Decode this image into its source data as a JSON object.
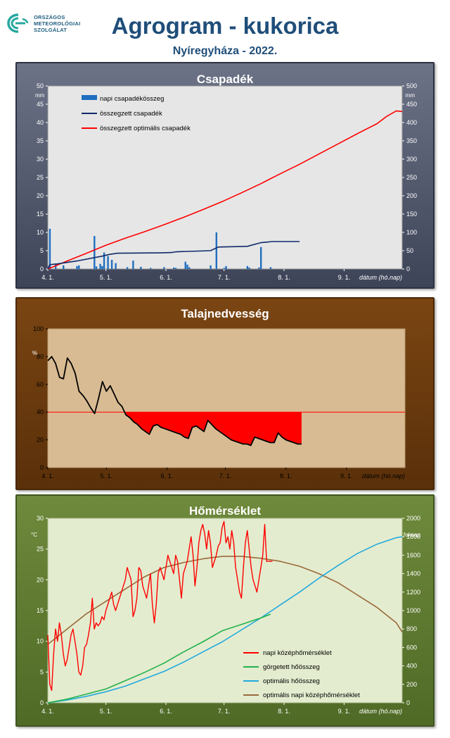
{
  "header": {
    "logo_lines": [
      "ORSZÁGOS",
      "METEOROLÓGIAI",
      "SZOLGÁLAT"
    ],
    "title": "Agrogram - kukorica",
    "subtitle": "Nyíregyháza - 2022."
  },
  "colors": {
    "title": "#1f4e79",
    "precip_bar": "#1f6fbf",
    "cum_precip": "#0f2a6a",
    "opt_precip": "#ff0000",
    "soil_line": "#000000",
    "soil_deficit": "#ff0000",
    "temp_daily": "#ff0000",
    "rolling_heat": "#22b24c",
    "opt_heat": "#22aadd",
    "opt_temp": "#9a6a3a"
  },
  "x_axis": {
    "ticks": [
      "4. 1.",
      "5. 1.",
      "6. 1.",
      "7. 1.",
      "8. 1.",
      "9. 1."
    ],
    "label": "dátum (hó.nap)"
  },
  "charts": {
    "precip": {
      "title": "Csapadék",
      "y_unit": "mm",
      "y2_unit": "mm",
      "legend": [
        "napi csapadékösszeg",
        "összegzett csapadék",
        "összegzett optimális csapadék"
      ]
    },
    "soil": {
      "title": "Talajnedvesség",
      "y_unit": "%"
    },
    "temp": {
      "title": "Hőmérséklet",
      "y_unit": "°C",
      "y2_unit": "foknap",
      "legend": [
        "napi középhőmérséklet",
        "görgetett hőösszeg",
        "optimális hőösszeg",
        "optimális napi középhőmérséklet"
      ]
    }
  },
  "chart_data": [
    {
      "type": "bar",
      "title": "Csapadék",
      "xlabel": "dátum (hó.nap)",
      "ylabel": "mm",
      "x_domain_days": [
        0,
        183
      ],
      "ylim": [
        0,
        50
      ],
      "y2lim": [
        0,
        500
      ],
      "y_ticks": [
        0,
        5,
        10,
        15,
        20,
        25,
        30,
        35,
        40,
        45,
        50
      ],
      "y2_ticks": [
        0,
        50,
        100,
        150,
        200,
        250,
        300,
        350,
        400,
        450,
        500
      ],
      "series": [
        {
          "name": "napi csapadékösszeg",
          "axis": "left",
          "kind": "bar",
          "x": [
            1,
            4,
            8,
            15,
            16,
            24,
            25,
            27,
            28,
            29,
            31,
            33,
            35,
            41,
            44,
            48,
            53,
            60,
            65,
            66,
            71,
            72,
            73,
            84,
            87,
            91,
            92,
            103,
            104,
            109,
            110,
            115
          ],
          "values": [
            11,
            1.5,
            1,
            0.8,
            1,
            9,
            0.7,
            1.4,
            0.8,
            4.5,
            3.5,
            2.5,
            1.6,
            0.5,
            2.3,
            0.6,
            0.3,
            0.5,
            0.4,
            0.3,
            2,
            1.2,
            0.5,
            1,
            10,
            0.3,
            0.8,
            0.8,
            0.4,
            0.4,
            6,
            0.5
          ]
        },
        {
          "name": "összegzett csapadék",
          "axis": "right",
          "kind": "line",
          "x": [
            0,
            1,
            5,
            15,
            28,
            32,
            36,
            58,
            64,
            66,
            72,
            84,
            88,
            103,
            110,
            116,
            130
          ],
          "y": [
            0,
            12,
            14,
            22,
            35,
            40,
            43,
            44,
            45,
            47,
            48,
            50,
            60,
            62,
            72,
            75,
            75
          ]
        },
        {
          "name": "összegzett optimális csapadék",
          "axis": "right",
          "kind": "line",
          "x": [
            0,
            10,
            20,
            30,
            40,
            50,
            60,
            70,
            80,
            90,
            100,
            110,
            120,
            130,
            140,
            150,
            160,
            170,
            175,
            180,
            183
          ],
          "y": [
            0,
            22,
            43,
            65,
            84,
            102,
            121,
            141,
            162,
            184,
            208,
            233,
            260,
            286,
            314,
            342,
            370,
            397,
            417,
            432,
            430
          ]
        }
      ]
    },
    {
      "type": "area",
      "title": "Talajnedvesség",
      "xlabel": "dátum (hó.nap)",
      "ylabel": "%",
      "x_domain_days": [
        0,
        183
      ],
      "ylim": [
        0,
        100
      ],
      "y_ticks": [
        0,
        20,
        40,
        60,
        80,
        100
      ],
      "threshold": 40,
      "series": [
        {
          "name": "talajnedvesség",
          "x": [
            0,
            2,
            4,
            6,
            8,
            10,
            12,
            14,
            16,
            18,
            20,
            22,
            24,
            26,
            28,
            30,
            32,
            34,
            36,
            38,
            40,
            42,
            44,
            46,
            48,
            50,
            52,
            54,
            56,
            58,
            60,
            62,
            64,
            66,
            68,
            70,
            72,
            74,
            76,
            78,
            80,
            82,
            84,
            86,
            88,
            90,
            92,
            94,
            96,
            98,
            100,
            102,
            104,
            106,
            108,
            110,
            112,
            114,
            116,
            118,
            120,
            122,
            124,
            126,
            128,
            130
          ],
          "y": [
            77,
            80,
            75,
            65,
            64,
            79,
            75,
            68,
            55,
            52,
            48,
            43,
            39,
            50,
            62,
            55,
            59,
            53,
            47,
            44,
            38,
            36,
            33,
            31,
            28,
            26,
            24,
            30,
            31,
            29,
            28,
            27,
            26,
            25,
            24,
            22,
            21,
            29,
            30,
            28,
            26,
            34,
            31,
            28,
            26,
            24,
            22,
            20,
            19,
            18,
            17,
            17,
            16,
            22,
            21,
            20,
            19,
            18,
            18,
            25,
            22,
            20,
            19,
            18,
            17,
            17
          ]
        }
      ]
    },
    {
      "type": "line",
      "title": "Hőmérséklet",
      "xlabel": "dátum (hó.nap)",
      "ylabel": "°C",
      "y2label": "foknap",
      "x_domain_days": [
        0,
        183
      ],
      "ylim": [
        0,
        30
      ],
      "y2lim": [
        0,
        2000
      ],
      "y_ticks": [
        0,
        5,
        10,
        15,
        20,
        25,
        30
      ],
      "y2_ticks": [
        0,
        200,
        400,
        600,
        800,
        1000,
        1200,
        1400,
        1600,
        1800,
        2000
      ],
      "series": [
        {
          "name": "napi középhőmérséklet",
          "axis": "left",
          "x": [
            0,
            1,
            2,
            3,
            4,
            5,
            6,
            7,
            8,
            9,
            10,
            11,
            12,
            13,
            14,
            15,
            16,
            17,
            18,
            19,
            20,
            21,
            22,
            23,
            24,
            25,
            26,
            27,
            28,
            29,
            30,
            31,
            32,
            33,
            34,
            35,
            36,
            37,
            38,
            39,
            40,
            41,
            42,
            43,
            44,
            45,
            46,
            47,
            48,
            49,
            50,
            51,
            52,
            53,
            54,
            55,
            56,
            57,
            58,
            59,
            60,
            61,
            62,
            63,
            64,
            65,
            66,
            67,
            68,
            69,
            70,
            71,
            72,
            73,
            74,
            75,
            76,
            77,
            78,
            79,
            80,
            81,
            82,
            83,
            84,
            85,
            86,
            87,
            88,
            89,
            90,
            91,
            92,
            93,
            94,
            95,
            96,
            97,
            98,
            99,
            100,
            101,
            102,
            103,
            104,
            105,
            106,
            107,
            108,
            109,
            110,
            111,
            112,
            113,
            114,
            115,
            116
          ],
          "y": [
            11,
            3,
            2,
            8,
            12,
            10,
            13,
            11,
            8,
            6,
            7,
            9,
            11,
            12,
            10,
            8,
            5,
            4.5,
            6,
            9,
            9.5,
            11,
            13,
            17,
            12,
            13,
            12.5,
            13,
            14,
            13.5,
            15,
            16,
            17,
            18,
            16,
            15,
            16,
            17,
            18,
            19,
            20,
            22,
            21,
            20,
            14,
            15,
            17,
            22,
            21.5,
            19,
            18,
            17,
            19,
            21,
            16,
            13,
            16,
            21,
            22,
            21,
            20,
            22,
            24,
            23,
            22,
            21,
            24,
            23,
            20,
            17,
            21,
            22,
            23,
            25,
            27,
            24,
            19,
            22,
            26,
            28,
            29,
            27.5,
            25,
            28,
            26,
            22,
            23,
            24,
            25.5,
            26,
            28.5,
            29.5,
            26,
            27,
            25,
            28,
            26,
            22,
            20,
            18,
            17,
            22,
            26,
            28,
            25,
            22,
            20,
            19,
            18,
            20,
            22,
            24,
            29,
            23,
            23,
            23,
            23
          ]
        },
        {
          "name": "görgetett hőösszeg",
          "axis": "right",
          "x": [
            0,
            10,
            20,
            30,
            40,
            50,
            60,
            70,
            80,
            90,
            100,
            110,
            115
          ],
          "y": [
            0,
            40,
            95,
            150,
            240,
            330,
            430,
            550,
            660,
            780,
            850,
            920,
            960
          ]
        },
        {
          "name": "optimális hőösszeg",
          "axis": "right",
          "x": [
            0,
            10,
            20,
            30,
            40,
            50,
            60,
            70,
            80,
            90,
            100,
            110,
            120,
            130,
            140,
            150,
            160,
            170,
            180,
            183
          ],
          "y": [
            0,
            30,
            70,
            120,
            180,
            260,
            340,
            440,
            550,
            660,
            790,
            920,
            1060,
            1200,
            1350,
            1490,
            1620,
            1720,
            1790,
            1800
          ]
        },
        {
          "name": "optimális napi középhőmérséklet",
          "axis": "left",
          "x": [
            0,
            10,
            20,
            30,
            40,
            50,
            60,
            70,
            80,
            90,
            100,
            110,
            120,
            130,
            140,
            150,
            160,
            170,
            180,
            183
          ],
          "y": [
            9.5,
            12,
            14.5,
            16.5,
            18.5,
            20.5,
            22,
            22.8,
            23.4,
            23.8,
            23.8,
            23.5,
            23.0,
            22.2,
            21.0,
            19.5,
            17.5,
            15.5,
            13.0,
            11.5
          ]
        }
      ]
    }
  ]
}
